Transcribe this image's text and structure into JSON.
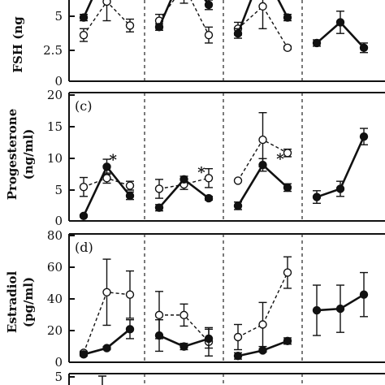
{
  "chart_data": [
    {
      "type": "line",
      "ylabel": "FSH (ng",
      "yticks": [
        "0",
        "2.5",
        "5"
      ],
      "ylim": [
        0,
        6.5
      ],
      "groups": [
        {
          "x": [
            1,
            2,
            3
          ],
          "series": [
            {
              "style": "filled-solid",
              "values": [
                4.0,
                7.2,
                5.8
              ],
              "err": [
                0.2,
                0.4,
                0.2
              ]
            },
            {
              "style": "open-dashed",
              "values": [
                2.9,
                5.0,
                3.5
              ],
              "err": [
                0.4,
                1.2,
                0.4
              ]
            }
          ]
        },
        {
          "x": [
            1,
            2,
            3
          ],
          "series": [
            {
              "style": "filled-solid",
              "values": [
                3.4,
                7.0,
                4.8
              ],
              "err": [
                0.2,
                0.3,
                0.3
              ]
            },
            {
              "style": "open-dashed",
              "values": [
                3.8,
                6.0,
                2.9
              ],
              "err": [
                0.4,
                1.1,
                0.5
              ]
            }
          ]
        },
        {
          "x": [
            1,
            2,
            3
          ],
          "series": [
            {
              "style": "filled-solid",
              "values": [
                3.0,
                7.0,
                4.0
              ],
              "err": [
                0.3,
                0.5,
                0.2
              ]
            },
            {
              "style": "open-dashed",
              "values": [
                3.3,
                4.7,
                2.1
              ],
              "err": [
                0.4,
                1.4,
                0.1
              ]
            }
          ]
        },
        {
          "x": [
            1,
            2,
            3
          ],
          "series": [
            {
              "style": "filled-solid",
              "values": [
                2.4,
                3.7,
                2.1
              ],
              "err": [
                0.2,
                0.7,
                0.3
              ]
            }
          ]
        }
      ]
    },
    {
      "type": "line",
      "panel": "(c)",
      "ylabel": "Progesterone",
      "ylabel2": "(ng/ml)",
      "yticks": [
        "0",
        "5",
        "10",
        "15",
        "20"
      ],
      "ylim": [
        0,
        20
      ],
      "groups": [
        {
          "x": [
            1,
            2,
            3
          ],
          "series": [
            {
              "style": "filled-solid",
              "values": [
                0.8,
                8.6,
                4.0
              ],
              "err": [
                0.2,
                1.2,
                0.6
              ]
            },
            {
              "style": "open-dashed",
              "values": [
                5.4,
                6.8,
                5.6
              ],
              "err": [
                1.5,
                0.8,
                0.7
              ]
            }
          ],
          "annotations": [
            {
              "text": "*",
              "x": 2,
              "y": 9.5
            }
          ]
        },
        {
          "x": [
            1,
            2,
            3
          ],
          "series": [
            {
              "style": "filled-solid",
              "values": [
                2.1,
                6.6,
                3.6
              ],
              "err": [
                0.5,
                0.5,
                0.3
              ]
            },
            {
              "style": "open-dashed",
              "values": [
                5.1,
                5.8,
                6.8
              ],
              "err": [
                1.5,
                0.8,
                1.5
              ]
            }
          ],
          "annotations": [
            {
              "text": "*",
              "x": 2.45,
              "y": 7.5
            }
          ]
        },
        {
          "x": [
            1,
            2,
            3
          ],
          "series": [
            {
              "style": "filled-solid",
              "values": [
                2.4,
                8.9,
                5.3
              ],
              "err": [
                0.6,
                1.0,
                0.6
              ]
            },
            {
              "style": "open-dashed",
              "values": [
                6.4,
                12.9,
                10.8
              ],
              "err": [
                0.1,
                4.3,
                0.6
              ]
            }
          ],
          "annotations": [
            {
              "text": "*",
              "x": 2.45,
              "y": 9.6
            }
          ]
        },
        {
          "x": [
            1,
            2,
            3
          ],
          "series": [
            {
              "style": "filled-solid",
              "values": [
                3.8,
                5.1,
                13.4
              ],
              "err": [
                1.0,
                1.2,
                1.3
              ]
            }
          ]
        }
      ]
    },
    {
      "type": "line",
      "panel": "(d)",
      "ylabel": "Estradiol",
      "ylabel2": "(pg/ml)",
      "yticks": [
        "0",
        "20",
        "40",
        "60",
        "80"
      ],
      "ylim": [
        0,
        80
      ],
      "groups": [
        {
          "x": [
            1,
            2,
            3
          ],
          "series": [
            {
              "style": "filled-solid",
              "values": [
                5.0,
                9.0,
                21.0
              ],
              "err": [
                1.0,
                1.0,
                6.0
              ]
            },
            {
              "style": "open-dashed",
              "values": [
                6.0,
                44.5,
                43.0
              ],
              "err": [
                1.0,
                21.0,
                15.0
              ]
            }
          ]
        },
        {
          "x": [
            1,
            2,
            3
          ],
          "series": [
            {
              "style": "filled-solid",
              "values": [
                17.0,
                10.0,
                15.0
              ],
              "err": [
                10.0,
                2.0,
                6.0
              ]
            },
            {
              "style": "open-dashed",
              "values": [
                30.0,
                30.0,
                13.0
              ],
              "err": [
                15.0,
                7.0,
                9.0
              ]
            }
          ]
        },
        {
          "x": [
            1,
            2,
            3
          ],
          "series": [
            {
              "style": "filled-solid",
              "values": [
                4.0,
                7.5,
                13.5
              ],
              "err": [
                2.0,
                1.0,
                2.0
              ]
            },
            {
              "style": "open-dashed",
              "values": [
                16.0,
                24.0,
                57.0
              ],
              "err": [
                8.0,
                14.0,
                10.0
              ]
            }
          ]
        },
        {
          "x": [
            1,
            2,
            3
          ],
          "series": [
            {
              "style": "filled-solid",
              "values": [
                33.0,
                34.0,
                43.0
              ],
              "err": [
                16.0,
                15.0,
                14.0
              ]
            }
          ]
        }
      ]
    },
    {
      "type": "line",
      "yticks": [
        "5"
      ],
      "partial": true
    }
  ]
}
